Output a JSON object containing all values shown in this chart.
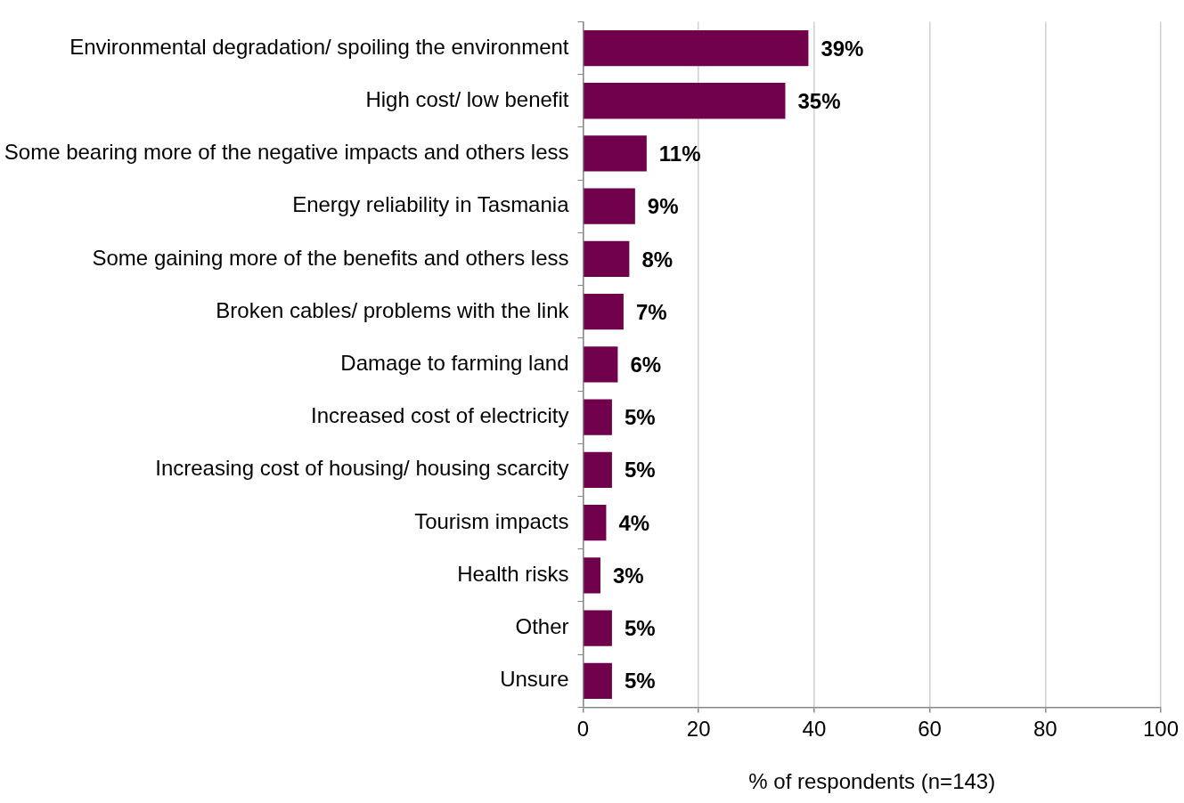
{
  "chart_data": {
    "type": "bar",
    "orientation": "horizontal",
    "xlabel": "% of respondents (n=143)",
    "categories": [
      "Environmental degradation/ spoiling the environment",
      "High cost/ low benefit",
      "Some bearing more of the negative impacts and others less",
      "Energy reliability in Tasmania",
      "Some gaining more of the benefits and others less",
      "Broken cables/ problems with the link",
      "Damage to farming land",
      "Increased cost of electricity",
      "Increasing cost of housing/ housing scarcity",
      "Tourism impacts",
      "Health risks",
      "Other",
      "Unsure"
    ],
    "values": [
      39,
      35,
      11,
      9,
      8,
      7,
      6,
      5,
      5,
      4,
      3,
      5,
      5
    ],
    "value_labels": [
      "39%",
      "35%",
      "11%",
      "9%",
      "8%",
      "7%",
      "6%",
      "5%",
      "5%",
      "4%",
      "3%",
      "5%",
      "5%"
    ],
    "color": "#70004b",
    "xlim": [
      0,
      100
    ],
    "xticks": [
      0,
      20,
      40,
      60,
      80,
      100
    ],
    "grid": "x",
    "legend": false
  }
}
